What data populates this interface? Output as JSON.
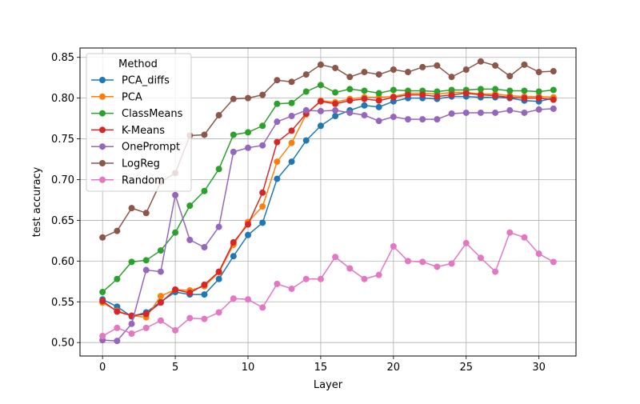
{
  "chart_data": {
    "type": "line",
    "title": "",
    "xlabel": "Layer",
    "ylabel": "test accuracy",
    "xlim": [
      -1.55,
      32.55
    ],
    "ylim": [
      0.4835,
      0.8615
    ],
    "xticks": [
      0,
      5,
      10,
      15,
      20,
      25,
      30
    ],
    "yticks": [
      0.5,
      0.55,
      0.6,
      0.65,
      0.7,
      0.75,
      0.8,
      0.85
    ],
    "grid": true,
    "legend": {
      "title": "Method",
      "placement": "top-left"
    },
    "x": [
      0,
      1,
      2,
      3,
      4,
      5,
      6,
      7,
      8,
      9,
      10,
      11,
      12,
      13,
      14,
      15,
      16,
      17,
      18,
      19,
      20,
      21,
      22,
      23,
      24,
      25,
      26,
      27,
      28,
      29,
      30,
      31
    ],
    "series": [
      {
        "name": "PCA_diffs",
        "color": "#1f77b4",
        "values": [
          0.553,
          0.544,
          0.532,
          0.537,
          0.55,
          0.562,
          0.559,
          0.559,
          0.578,
          0.606,
          0.632,
          0.647,
          0.701,
          0.722,
          0.748,
          0.766,
          0.778,
          0.785,
          0.791,
          0.789,
          0.796,
          0.8,
          0.8,
          0.799,
          0.802,
          0.802,
          0.801,
          0.801,
          0.8,
          0.797,
          0.796,
          0.8
        ]
      },
      {
        "name": "PCA",
        "color": "#ff7f0e",
        "values": [
          0.549,
          0.539,
          0.533,
          0.531,
          0.557,
          0.565,
          0.564,
          0.569,
          0.586,
          0.62,
          0.648,
          0.667,
          0.722,
          0.745,
          0.78,
          0.797,
          0.795,
          0.799,
          0.801,
          0.801,
          0.802,
          0.806,
          0.806,
          0.805,
          0.807,
          0.807,
          0.805,
          0.805,
          0.803,
          0.802,
          0.802,
          0.801
        ]
      },
      {
        "name": "ClassMeans",
        "color": "#2ca02c",
        "values": [
          0.562,
          0.578,
          0.599,
          0.601,
          0.613,
          0.635,
          0.668,
          0.686,
          0.713,
          0.755,
          0.758,
          0.766,
          0.793,
          0.794,
          0.808,
          0.816,
          0.807,
          0.811,
          0.809,
          0.806,
          0.81,
          0.809,
          0.809,
          0.808,
          0.81,
          0.81,
          0.811,
          0.811,
          0.809,
          0.809,
          0.808,
          0.81
        ]
      },
      {
        "name": "K-Means",
        "color": "#d62728",
        "values": [
          0.551,
          0.538,
          0.533,
          0.535,
          0.549,
          0.565,
          0.561,
          0.571,
          0.587,
          0.623,
          0.645,
          0.684,
          0.746,
          0.76,
          0.781,
          0.796,
          0.793,
          0.797,
          0.799,
          0.797,
          0.801,
          0.804,
          0.804,
          0.802,
          0.804,
          0.806,
          0.804,
          0.803,
          0.801,
          0.8,
          0.8,
          0.798
        ]
      },
      {
        "name": "OnePrompt",
        "color": "#9467bd",
        "values": [
          0.503,
          0.502,
          0.523,
          0.589,
          0.587,
          0.681,
          0.626,
          0.617,
          0.642,
          0.734,
          0.739,
          0.742,
          0.771,
          0.778,
          0.785,
          0.784,
          0.785,
          0.782,
          0.779,
          0.772,
          0.777,
          0.774,
          0.774,
          0.774,
          0.781,
          0.782,
          0.782,
          0.782,
          0.785,
          0.782,
          0.786,
          0.787
        ]
      },
      {
        "name": "LogReg",
        "color": "#8c564b",
        "values": [
          0.629,
          0.637,
          0.665,
          0.659,
          0.697,
          0.708,
          0.754,
          0.755,
          0.779,
          0.799,
          0.8,
          0.804,
          0.822,
          0.82,
          0.829,
          0.841,
          0.837,
          0.826,
          0.832,
          0.829,
          0.835,
          0.832,
          0.838,
          0.84,
          0.826,
          0.835,
          0.845,
          0.84,
          0.827,
          0.841,
          0.832,
          0.833
        ]
      },
      {
        "name": "Random",
        "color": "#e377c2",
        "values": [
          0.508,
          0.518,
          0.511,
          0.518,
          0.527,
          0.515,
          0.53,
          0.529,
          0.537,
          0.554,
          0.553,
          0.543,
          0.572,
          0.566,
          0.578,
          0.578,
          0.605,
          0.591,
          0.578,
          0.583,
          0.618,
          0.6,
          0.599,
          0.593,
          0.597,
          0.622,
          0.604,
          0.587,
          0.635,
          0.629,
          0.609,
          0.599
        ]
      }
    ]
  }
}
